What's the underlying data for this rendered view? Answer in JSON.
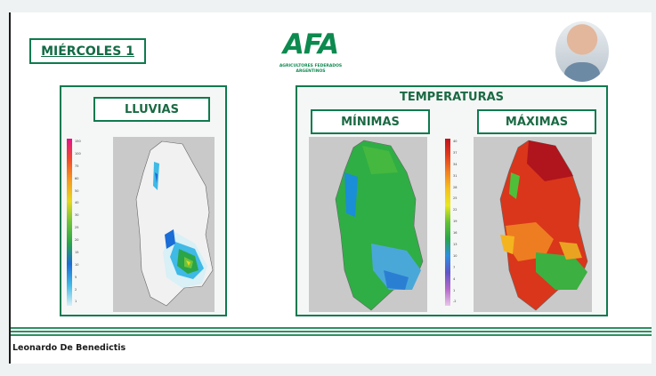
{
  "date_label": "MIÉRCOLES 1",
  "logo": {
    "letters": "AFA",
    "subtitle_line1": "AGRICULTORES FEDERADOS",
    "subtitle_line2": "ARGENTINOS"
  },
  "rain_panel": {
    "title": "LLUVIAS",
    "scale_ticks": [
      "150",
      "100",
      "75",
      "60",
      "50",
      "40",
      "30",
      "25",
      "20",
      "15",
      "10",
      "5",
      "2",
      "1"
    ]
  },
  "temp_panel": {
    "title": "TEMPERATURAS",
    "min_title": "MÍNIMAS",
    "max_title": "MÁXIMAS",
    "scale_ticks": [
      "40",
      "37",
      "34",
      "31",
      "28",
      "25",
      "22",
      "19",
      "16",
      "13",
      "10",
      "7",
      "4",
      "1",
      "-2"
    ]
  },
  "presenter_name": "Leonardo De Benedictis",
  "colors": {
    "brand_green": "#0f7a4f",
    "text_green": "#1b6a44"
  }
}
